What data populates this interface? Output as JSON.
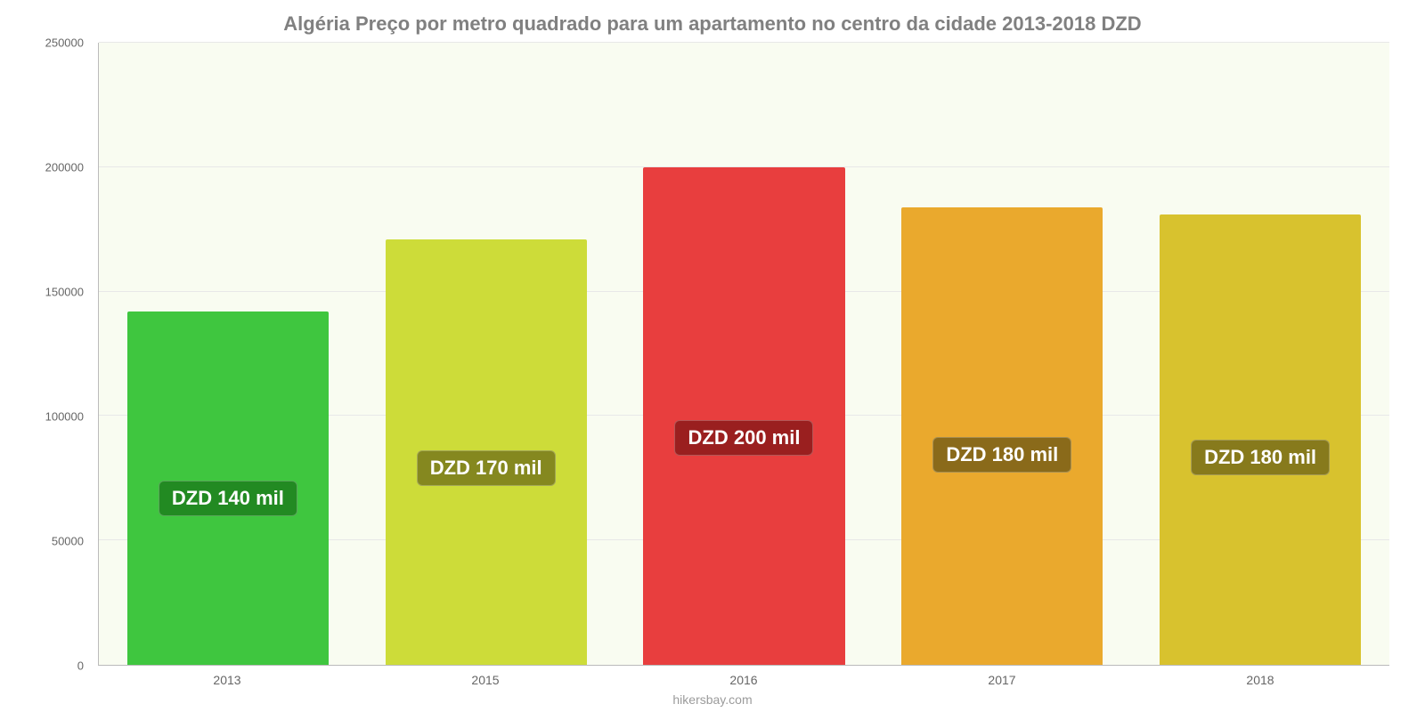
{
  "chart": {
    "type": "bar",
    "title": "Algéria Preço por metro quadrado para um apartamento no centro da cidade 2013-2018 DZD",
    "title_fontsize": 22,
    "title_color": "#808080",
    "background_color": "#ffffff",
    "plot_bg_color": "#f9fcf1",
    "grid_color": "#e8e8e8",
    "axis_color": "#bbbbbb",
    "tick_color": "#666666",
    "ylim": [
      0,
      250000
    ],
    "ytick_step": 50000,
    "yticks": [
      {
        "value": 0,
        "label": "0"
      },
      {
        "value": 50000,
        "label": "50000"
      },
      {
        "value": 100000,
        "label": "100000"
      },
      {
        "value": 150000,
        "label": "150000"
      },
      {
        "value": 200000,
        "label": "200000"
      },
      {
        "value": 250000,
        "label": "250000"
      }
    ],
    "bar_width_pct": 78,
    "label_fontsize": 22,
    "label_text_color": "#ffffff",
    "label_vertical_offset_pct": 42,
    "categories": [
      "2013",
      "2015",
      "2016",
      "2017",
      "2018"
    ],
    "series": [
      {
        "value": 142000,
        "label": "DZD 140 mil",
        "bar_color": "#3fc63f",
        "label_bg": "#228a22"
      },
      {
        "value": 171000,
        "label": "DZD 170 mil",
        "bar_color": "#cddc39",
        "label_bg": "#85881f"
      },
      {
        "value": 200000,
        "label": "DZD 200 mil",
        "bar_color": "#e83e3e",
        "label_bg": "#9a1f1f"
      },
      {
        "value": 184000,
        "label": "DZD 180 mil",
        "bar_color": "#eaa92d",
        "label_bg": "#8a6a1a"
      },
      {
        "value": 181000,
        "label": "DZD 180 mil",
        "bar_color": "#d8c22e",
        "label_bg": "#877a1c"
      }
    ],
    "credit": "hikersbay.com",
    "credit_color": "#9b9b9b"
  }
}
